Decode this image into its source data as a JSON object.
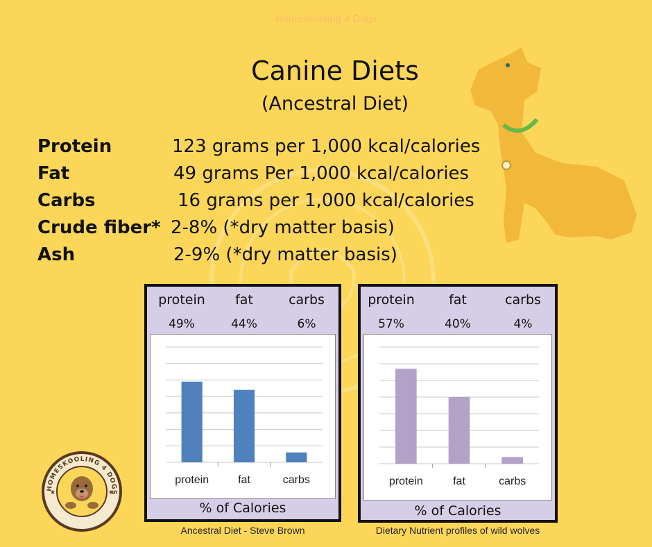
{
  "watermark": "Homeskooling 4 Dogs",
  "title": "Canine Diets",
  "subtitle": "(Ancestral Diet)",
  "nutrients": [
    {
      "label": "Protein",
      "value": "123 grams per 1,000 kcal/calories"
    },
    {
      "label": "Fat",
      "value": "49 grams Per 1,000 kcal/calories"
    },
    {
      "label": "Carbs",
      "value": "16 grams per 1,000 kcal/calories"
    },
    {
      "label": "Crude fiber*",
      "value": "2-8% (*dry matter basis)"
    },
    {
      "label": "Ash",
      "value": "2-9% (*dry matter basis)"
    }
  ],
  "logo_text": "HOMESKOOLING 4 DOGS",
  "colors": {
    "background": "#fcd658",
    "dog": "#f2b83a",
    "chart1_bar": "#4f81bd",
    "chart2_bar": "#b3a2c7",
    "panel": "#d6cde6"
  },
  "chart_data": [
    {
      "type": "bar",
      "categories": [
        "protein",
        "fat",
        "carbs"
      ],
      "values": [
        49,
        44,
        6
      ],
      "value_labels": [
        "49%",
        "44%",
        "6%"
      ],
      "xlabel": "% of Calories",
      "ylim": [
        0,
        70
      ],
      "grid": true,
      "caption": "Ancestral Diet - Steve Brown",
      "bar_color": "#4f81bd"
    },
    {
      "type": "bar",
      "categories": [
        "protein",
        "fat",
        "carbs"
      ],
      "values": [
        57,
        40,
        4
      ],
      "value_labels": [
        "57%",
        "40%",
        "4%"
      ],
      "xlabel": "% of Calories",
      "ylim": [
        0,
        70
      ],
      "grid": true,
      "caption": "Dietary Nutrient profiles of wild wolves",
      "bar_color": "#b3a2c7"
    }
  ]
}
